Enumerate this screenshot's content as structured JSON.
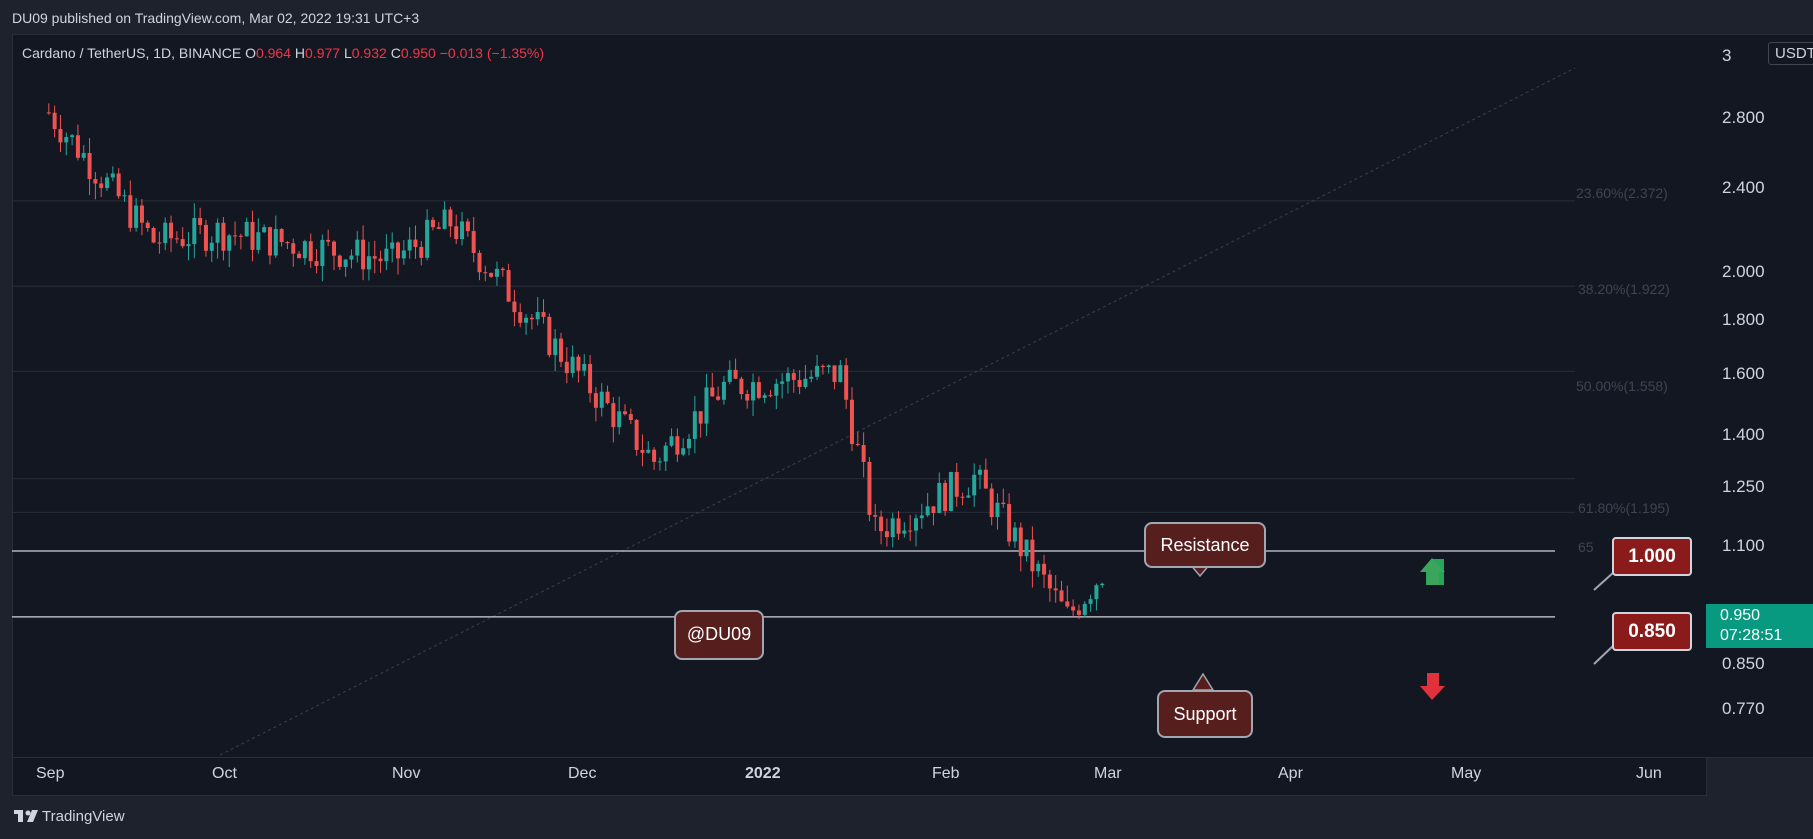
{
  "header": {
    "published": "DU09 published on TradingView.com, Mar 02, 2022 19:31 UTC+3"
  },
  "ohlc": {
    "symbol": "Cardano / TetherUS, 1D, BINANCE",
    "o_label": "O",
    "o": "0.964",
    "h_label": "H",
    "h": "0.977",
    "l_label": "L",
    "l": "0.932",
    "c_label": "C",
    "c": "0.950",
    "change": "−0.013 (−1.35%)"
  },
  "price_axis": {
    "currency": "USDT",
    "top_digit": "3",
    "labels": [
      "2.800",
      "2.400",
      "2.000",
      "1.800",
      "1.600",
      "1.400",
      "1.250",
      "1.100",
      "0.850",
      "0.770"
    ]
  },
  "time_axis": {
    "labels": [
      "Sep",
      "Oct",
      "Nov",
      "Dec",
      "2022",
      "Feb",
      "Mar",
      "Apr",
      "May",
      "Jun"
    ]
  },
  "fib_levels": [
    {
      "label": "23.60%(2.372)"
    },
    {
      "label": "38.20%(1.922)"
    },
    {
      "label": "50.00%(1.558)"
    },
    {
      "label": "61.80%(1.195)"
    },
    {
      "label": "65"
    }
  ],
  "annotations": {
    "watermark": "@DU09",
    "resistance": "Resistance",
    "support": "Support",
    "resistance_price": "1.000",
    "support_price": "0.850"
  },
  "last_price": {
    "value": "0.950",
    "countdown": "07:28:51"
  },
  "footer": {
    "brand": "TradingView"
  },
  "colors": {
    "up": "#26a69a",
    "down": "#ef5350",
    "background": "#131722",
    "frame": "#1e222d",
    "callout_fill": "#571e1e",
    "flag_fill": "#8b1b1b",
    "last_price_bg": "#089981"
  },
  "chart_data": {
    "type": "candlestick",
    "title": "Cardano / TetherUS, 1D, BINANCE",
    "y_scale": "log",
    "ylim": [
      0.72,
      3.0
    ],
    "x_ticks": [
      "Sep",
      "Oct",
      "Nov",
      "Dec",
      "2022",
      "Feb",
      "Mar",
      "Apr",
      "May",
      "Jun"
    ],
    "horizontal_lines": [
      1.0,
      0.85
    ],
    "fib_retracement": [
      2.372,
      1.922,
      1.558,
      1.195
    ],
    "key_levels": {
      "resistance": 1.0,
      "support": 0.85
    },
    "trend": "downtrend from ~2.9 (early Sep 2021) to ~0.95 (Mar 2, 2022)",
    "ohlc_key_points": [
      {
        "date": "2021-09-02",
        "close": 2.95
      },
      {
        "date": "2021-09-20",
        "close": 2.15
      },
      {
        "date": "2021-10-01",
        "close": 2.2
      },
      {
        "date": "2021-10-31",
        "close": 2.05
      },
      {
        "date": "2021-11-10",
        "close": 2.25
      },
      {
        "date": "2021-11-30",
        "close": 1.6
      },
      {
        "date": "2021-12-15",
        "close": 1.25
      },
      {
        "date": "2021-12-27",
        "close": 1.5
      },
      {
        "date": "2022-01-16",
        "close": 1.55
      },
      {
        "date": "2022-01-22",
        "close": 1.05
      },
      {
        "date": "2022-02-08",
        "close": 1.2
      },
      {
        "date": "2022-02-24",
        "close": 0.85
      },
      {
        "date": "2022-03-02",
        "close": 0.95
      }
    ]
  }
}
